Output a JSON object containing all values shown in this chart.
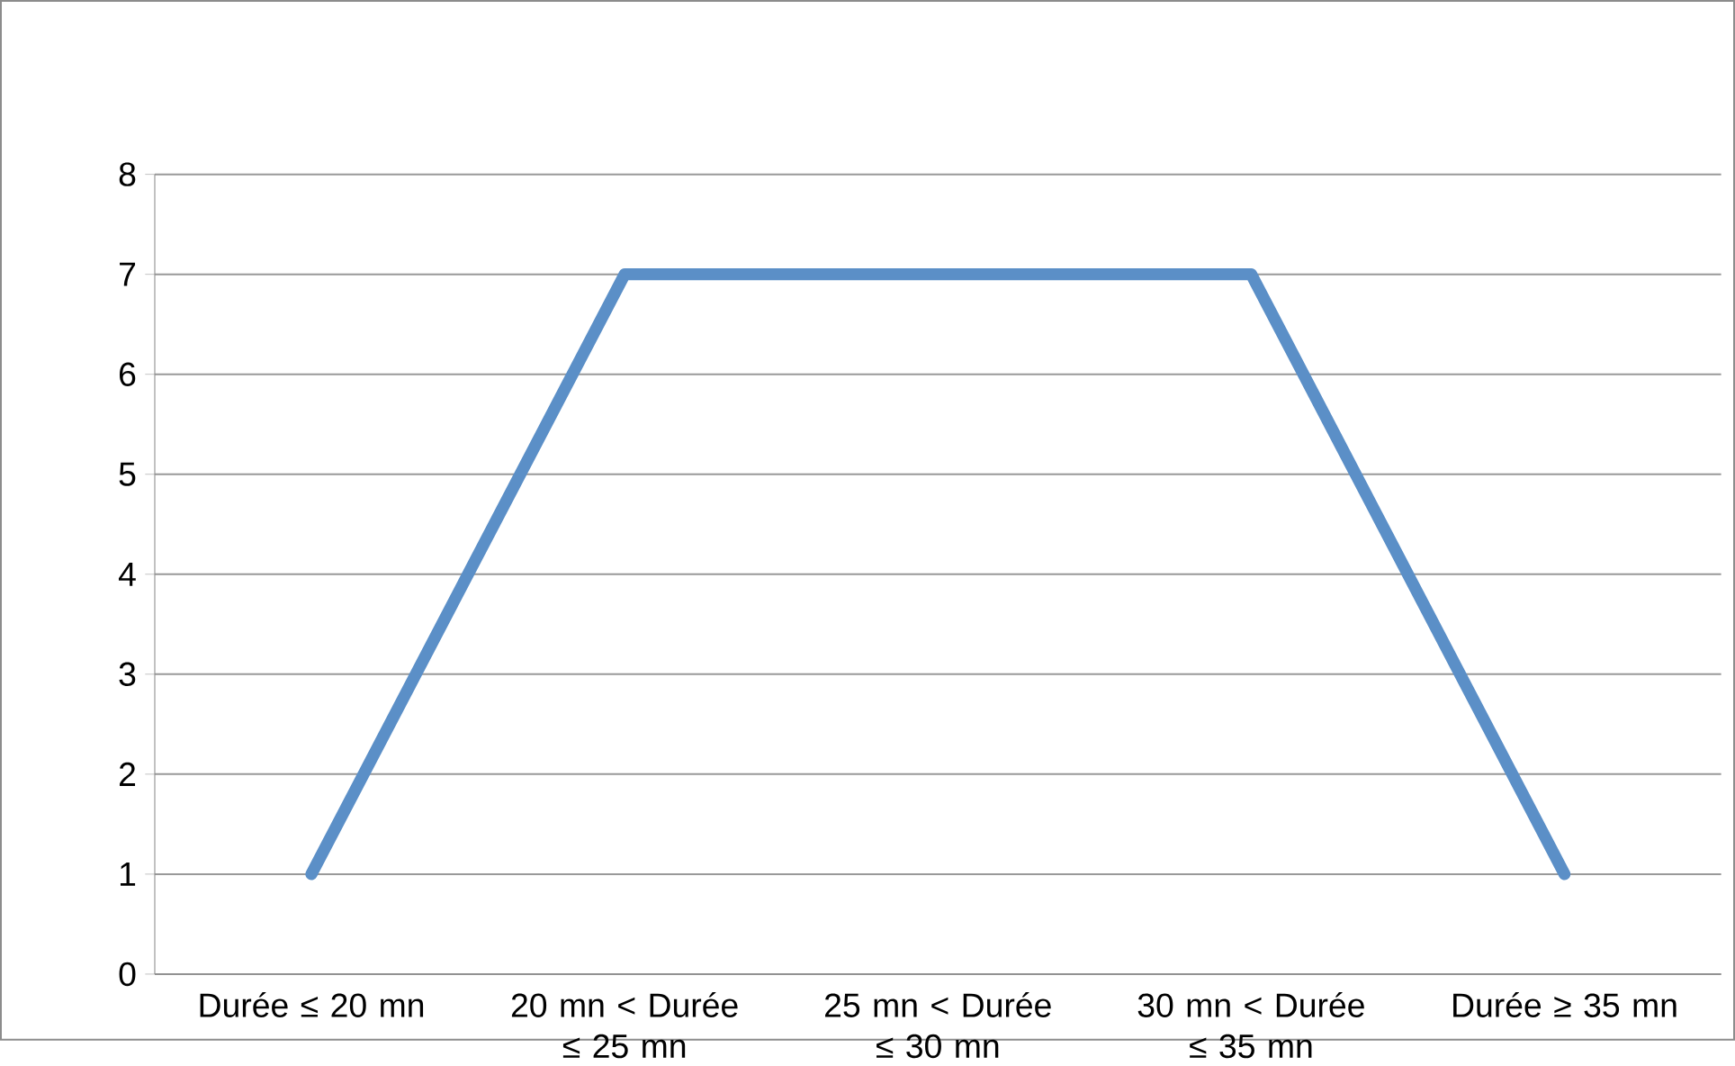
{
  "chart_data": {
    "type": "line",
    "categories": [
      "Durée ≤ 20 mn",
      "20 mn < Durée ≤ 25 mn",
      "25 mn < Durée ≤ 30 mn",
      "30 mn < Durée ≤ 35 mn",
      "Durée ≥ 35 mn"
    ],
    "values": [
      1,
      7,
      7,
      7,
      1
    ],
    "color": "#5b8fc7",
    "ylim": [
      0,
      8
    ],
    "yticks": [
      0,
      1,
      2,
      3,
      4,
      5,
      6,
      7,
      8
    ],
    "grid": "y",
    "marker": "none",
    "line_style": "solid"
  }
}
